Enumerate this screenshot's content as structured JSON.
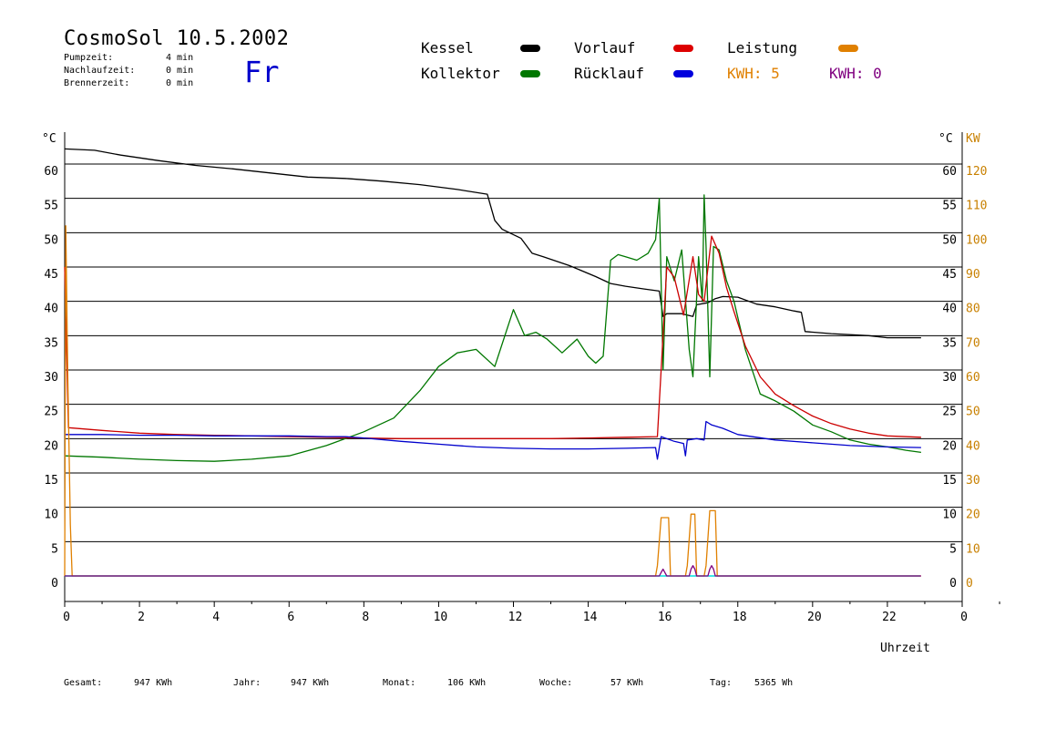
{
  "header": {
    "title": "CosmoSol 10.5.2002",
    "day": "Fr",
    "stats": [
      {
        "label": "Pumpzeit:",
        "value": "4 min"
      },
      {
        "label": "Nachlaufzeit:",
        "value": "0 min"
      },
      {
        "label": "Brennerzeit:",
        "value": "0 min"
      }
    ]
  },
  "legend": {
    "kessel": "Kessel",
    "vorlauf": "Vorlauf",
    "leistung": "Leistung",
    "kollektor": "Kollektor",
    "ruecklauf": "Rücklauf",
    "kwh1": "KWH: 5",
    "kwh2": "KWH: 0"
  },
  "colors": {
    "kessel": "#000000",
    "vorlauf": "#cc0000",
    "leistung": "#e08000",
    "kollektor": "#007700",
    "ruecklauf": "#0000cc",
    "kwh2": "#800080",
    "baseline": "#00e0e0"
  },
  "footer": [
    {
      "label": "Gesamt:",
      "value": "947 KWh"
    },
    {
      "label": "Jahr:",
      "value": "947 KWh"
    },
    {
      "label": "Monat:",
      "value": "106 KWh"
    },
    {
      "label": "Woche:",
      "value": "57 KWh"
    },
    {
      "label": "Tag:",
      "value": "5365 Wh"
    }
  ],
  "chart_data": {
    "type": "line",
    "xlabel": "Uhrzeit",
    "ylabel_left": "°C",
    "ylabel_right_temp": "°C",
    "ylabel_right_power": "KW",
    "xlim": [
      0,
      24
    ],
    "ylim": [
      0,
      60
    ],
    "y2lim": [
      0,
      120
    ],
    "x_ticks": [
      "0",
      "2",
      "4",
      "6",
      "8",
      "10",
      "12",
      "14",
      "16",
      "18",
      "20",
      "22",
      "0"
    ],
    "y_ticks": [
      0,
      5,
      10,
      15,
      20,
      25,
      30,
      35,
      40,
      45,
      50,
      55,
      60
    ],
    "y2_ticks": [
      0,
      10,
      20,
      30,
      40,
      50,
      60,
      70,
      80,
      90,
      100,
      110,
      120
    ],
    "grid": "horizontal",
    "series": [
      {
        "name": "Kessel",
        "key": "kessel",
        "x": [
          0,
          0.8,
          1.5,
          2.5,
          3.5,
          4.5,
          5.5,
          6.5,
          7.5,
          8.5,
          9.5,
          10.5,
          11.3,
          11.5,
          11.7,
          12.2,
          12.5,
          12.8,
          13.5,
          14.2,
          14.6,
          15.0,
          15.5,
          15.9,
          16.0,
          16.1,
          16.5,
          16.8,
          16.9,
          17.2,
          17.4,
          17.6,
          18.0,
          18.5,
          19.0,
          19.5,
          19.7,
          19.8,
          20.5,
          21.5,
          22.0,
          22.9
        ],
        "y": [
          62.2,
          62.0,
          61.3,
          60.5,
          59.8,
          59.3,
          58.7,
          58.1,
          57.9,
          57.5,
          57.0,
          56.3,
          55.6,
          51.8,
          50.5,
          49.2,
          47.0,
          46.5,
          45.2,
          43.6,
          42.6,
          42.2,
          41.8,
          41.5,
          37.8,
          38.2,
          38.2,
          37.8,
          39.5,
          39.8,
          40.4,
          40.7,
          40.6,
          39.6,
          39.2,
          38.6,
          38.4,
          35.6,
          35.3,
          35.0,
          34.7,
          34.7
        ]
      },
      {
        "name": "Kollektor",
        "key": "kollektor",
        "x": [
          0,
          1,
          2,
          3,
          4,
          5,
          6,
          7,
          8,
          8.8,
          9.5,
          10.0,
          10.5,
          11.0,
          11.5,
          12.0,
          12.3,
          12.6,
          12.9,
          13.3,
          13.7,
          14.0,
          14.2,
          14.4,
          14.6,
          14.8,
          15.0,
          15.3,
          15.6,
          15.8,
          15.9,
          16.0,
          16.1,
          16.3,
          16.5,
          16.7,
          16.8,
          16.95,
          17.05,
          17.1,
          17.15,
          17.25,
          17.35,
          17.5,
          17.7,
          17.9,
          18.2,
          18.6,
          19.0,
          19.5,
          20.0,
          20.5,
          21.0,
          21.5,
          22.0,
          22.5,
          22.9
        ],
        "y": [
          17.5,
          17.3,
          17.0,
          16.8,
          16.7,
          17.0,
          17.5,
          19.0,
          21.0,
          23.0,
          27.0,
          30.5,
          32.5,
          33.0,
          30.5,
          38.8,
          35.0,
          35.5,
          34.5,
          32.5,
          34.5,
          32.0,
          31.0,
          32.0,
          46.0,
          46.8,
          46.5,
          46.0,
          47.0,
          49.0,
          55.0,
          30.0,
          46.5,
          43.0,
          47.5,
          33.0,
          29.0,
          46.5,
          40.0,
          55.5,
          48.0,
          29.0,
          48.0,
          47.5,
          43.0,
          40.0,
          33.0,
          26.5,
          25.5,
          24.0,
          22.0,
          21.0,
          19.8,
          19.2,
          18.8,
          18.3,
          18.0
        ]
      },
      {
        "name": "Vorlauf",
        "key": "vorlauf",
        "x": [
          0,
          0.1,
          1,
          2,
          3,
          4,
          5,
          6,
          7,
          8,
          9,
          10,
          11,
          12,
          13,
          14,
          15,
          15.85,
          15.95,
          16.1,
          16.3,
          16.55,
          16.8,
          16.95,
          17.1,
          17.3,
          17.5,
          17.7,
          17.9,
          18.2,
          18.6,
          19.0,
          19.5,
          20.0,
          20.5,
          21.0,
          21.5,
          22.0,
          22.9
        ],
        "y": [
          45,
          21.6,
          21.2,
          20.8,
          20.6,
          20.5,
          20.4,
          20.3,
          20.2,
          20.1,
          20.0,
          20.0,
          20.0,
          20.0,
          20.0,
          20.1,
          20.2,
          20.3,
          30.0,
          45.0,
          43.5,
          38.0,
          46.5,
          41.0,
          40.0,
          49.5,
          47.0,
          42.0,
          38.5,
          33.5,
          29.0,
          26.5,
          24.8,
          23.3,
          22.2,
          21.4,
          20.8,
          20.4,
          20.2
        ]
      },
      {
        "name": "Rücklauf",
        "key": "ruecklauf",
        "x": [
          0,
          1,
          2,
          3,
          4,
          5,
          6,
          7,
          7.5,
          8,
          9,
          10,
          11,
          12,
          13,
          14,
          15,
          15.8,
          15.85,
          15.95,
          16.3,
          16.55,
          16.6,
          16.65,
          16.9,
          17.1,
          17.15,
          17.3,
          17.6,
          18.0,
          19.0,
          20.0,
          21.0,
          22.0,
          22.9
        ],
        "y": [
          20.6,
          20.6,
          20.5,
          20.5,
          20.4,
          20.4,
          20.4,
          20.3,
          20.3,
          20.1,
          19.6,
          19.2,
          18.8,
          18.6,
          18.5,
          18.5,
          18.6,
          18.7,
          17.0,
          20.3,
          19.6,
          19.3,
          17.5,
          19.8,
          20.0,
          19.8,
          22.5,
          22.0,
          21.5,
          20.6,
          19.8,
          19.4,
          19.0,
          18.8,
          18.7
        ]
      },
      {
        "name": "Leistung",
        "key": "leistung",
        "axis": "y2",
        "x": [
          0,
          0.03,
          0.08,
          0.15,
          0.2,
          0.3,
          15.8,
          15.85,
          15.95,
          16.05,
          16.15,
          16.2,
          16.6,
          16.65,
          16.75,
          16.85,
          16.9,
          17.1,
          17.15,
          17.25,
          17.4,
          17.45,
          17.5,
          22.9
        ],
        "y": [
          0,
          102,
          60,
          15,
          0,
          0,
          0,
          3,
          17,
          17,
          17,
          0,
          0,
          3,
          18,
          18,
          0,
          0,
          3,
          19,
          19,
          0,
          0,
          0
        ]
      },
      {
        "name": "KWH: 0",
        "key": "kwh2",
        "axis": "y2",
        "x": [
          0,
          15.9,
          15.95,
          16.0,
          16.05,
          16.1,
          16.7,
          16.75,
          16.8,
          16.85,
          16.9,
          17.2,
          17.25,
          17.3,
          17.35,
          17.4,
          22.9
        ],
        "y": [
          0,
          0,
          1,
          2,
          1,
          0,
          0,
          2,
          3,
          2,
          0,
          0,
          2,
          3,
          2,
          0,
          0
        ]
      }
    ]
  }
}
